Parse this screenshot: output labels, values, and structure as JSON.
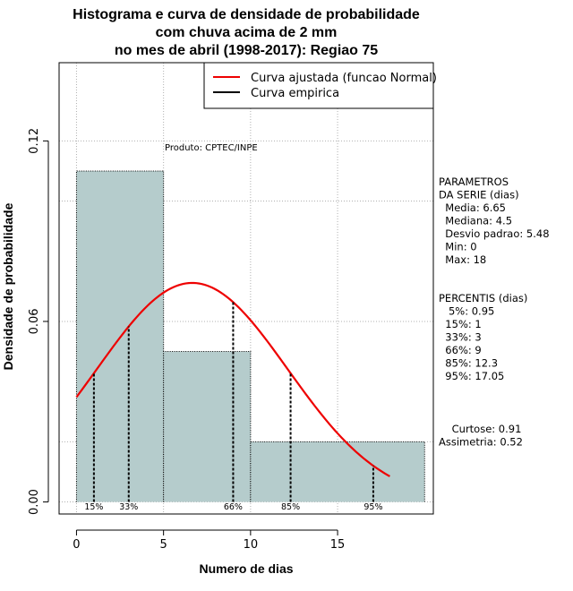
{
  "chart_data": {
    "type": "bar",
    "title_lines": [
      "Histograma e curva de densidade de probabilidade",
      "com chuva acima de 2 mm",
      "no mes de abril (1998-2017): Regiao 75"
    ],
    "xlabel": "Numero de dias",
    "ylabel": "Densidade de probabilidade",
    "xlim": [
      -1,
      20.5
    ],
    "ylim": [
      -0.004,
      0.146
    ],
    "x_ticks": [
      0,
      5,
      10,
      15
    ],
    "y_ticks": [
      0.0,
      0.06,
      0.12
    ],
    "y_tick_labels": [
      "0.00",
      "0.06",
      "0.12"
    ],
    "grid": true,
    "bins": [
      {
        "start": 0,
        "end": 5,
        "density": 0.11
      },
      {
        "start": 5,
        "end": 10,
        "density": 0.05
      },
      {
        "start": 10,
        "end": 20,
        "density": 0.02
      }
    ],
    "bar_color": "#b5cccc",
    "fitted_curve": {
      "name": "Curva ajustada (funcao Normal)",
      "color": "#ee0000",
      "mean": 6.65,
      "sd": 5.48,
      "x_range": [
        0,
        18
      ]
    },
    "empirical_curve": {
      "name": "Curva empirica",
      "color": "#000000"
    },
    "percentiles": [
      {
        "label": "15%",
        "x": 1
      },
      {
        "label": "33%",
        "x": 3
      },
      {
        "label": "66%",
        "x": 9
      },
      {
        "label": "85%",
        "x": 12.3
      },
      {
        "label": "95%",
        "x": 17.05
      }
    ],
    "annotation": "Produto: CPTEC/INPE",
    "legend_position": "top-right"
  },
  "side_panel": {
    "params_lines": [
      "PARAMETROS",
      "DA SERIE (dias)",
      "  Media: 6.65",
      "  Mediana: 4.5",
      "  Desvio padrao: 5.48",
      "  Min: 0",
      "  Max: 18"
    ],
    "perc_lines": [
      "PERCENTIS (dias)",
      "   5%: 0.95",
      "  15%: 1",
      "  33%: 3",
      "  66%: 9",
      "  85%: 12.3",
      "  95%: 17.05"
    ],
    "stats_lines": [
      "    Curtose: 0.91",
      "Assimetria: 0.52"
    ]
  }
}
